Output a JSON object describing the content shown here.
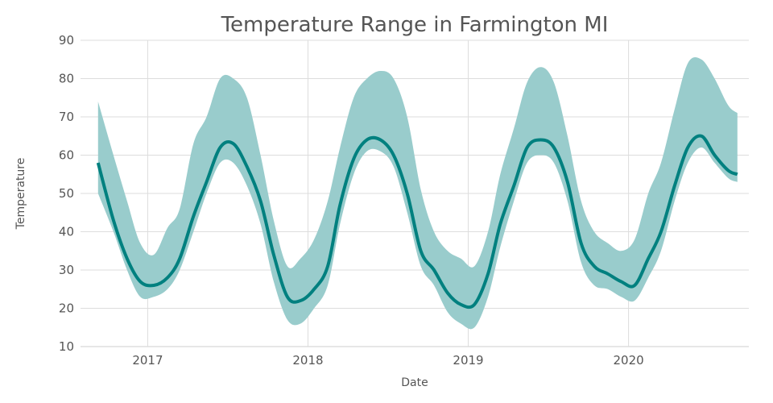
{
  "chart_data": {
    "type": "area",
    "title": "Temperature Range in Farmington MI",
    "xlabel": "Date",
    "ylabel": "Temperature",
    "x_type": "date",
    "x_range": [
      "2016-08-01",
      "2020-10-01"
    ],
    "ylim": [
      10,
      90
    ],
    "y_ticks": [
      10,
      20,
      30,
      40,
      50,
      60,
      70,
      80,
      90
    ],
    "x_ticks": [
      {
        "date": "2017-01-01",
        "label": "2017"
      },
      {
        "date": "2018-01-01",
        "label": "2018"
      },
      {
        "date": "2019-01-01",
        "label": "2019"
      },
      {
        "date": "2020-01-01",
        "label": "2020"
      }
    ],
    "grid": true,
    "colors": {
      "line": "#00807f",
      "band": "#99cccc"
    },
    "x": [
      "2016-09-10",
      "2016-10-15",
      "2016-11-15",
      "2016-12-15",
      "2017-01-15",
      "2017-02-15",
      "2017-03-15",
      "2017-04-15",
      "2017-05-15",
      "2017-06-15",
      "2017-07-15",
      "2017-08-15",
      "2017-09-15",
      "2017-10-15",
      "2017-11-15",
      "2017-12-15",
      "2018-01-15",
      "2018-02-15",
      "2018-03-15",
      "2018-04-15",
      "2018-05-15",
      "2018-06-15",
      "2018-07-15",
      "2018-08-15",
      "2018-09-15",
      "2018-10-15",
      "2018-11-15",
      "2018-12-15",
      "2019-01-15",
      "2019-02-15",
      "2019-03-15",
      "2019-04-15",
      "2019-05-15",
      "2019-06-15",
      "2019-07-15",
      "2019-08-15",
      "2019-09-15",
      "2019-10-15",
      "2019-11-15",
      "2019-12-15",
      "2020-01-15",
      "2020-02-15",
      "2020-03-15",
      "2020-04-15",
      "2020-05-15",
      "2020-06-15",
      "2020-07-15",
      "2020-08-15",
      "2020-09-05"
    ],
    "series": [
      {
        "role": "high",
        "values": [
          74,
          60,
          48,
          37,
          34,
          41,
          46,
          63,
          70,
          80,
          80,
          75,
          60,
          43,
          31,
          33,
          38,
          48,
          62,
          75,
          80,
          82,
          80,
          70,
          51,
          40,
          35,
          33,
          31,
          40,
          55,
          67,
          79,
          83,
          79,
          65,
          48,
          40,
          37,
          35,
          38,
          50,
          58,
          72,
          84,
          85,
          80,
          73,
          71
        ]
      },
      {
        "role": "mean",
        "values": [
          58,
          43,
          33,
          27,
          26,
          28,
          33,
          44,
          53,
          62,
          63,
          57,
          48,
          34,
          23,
          22,
          25,
          31,
          47,
          59,
          64,
          64,
          60,
          50,
          35,
          30,
          24,
          21,
          21,
          29,
          42,
          52,
          62,
          64,
          62,
          53,
          37,
          31,
          29,
          27,
          26,
          33,
          40,
          52,
          62,
          65,
          60,
          56,
          55
        ]
      },
      {
        "role": "low",
        "values": [
          50,
          40,
          30,
          23,
          23,
          25,
          30,
          40,
          50,
          58,
          58,
          52,
          42,
          27,
          17,
          16,
          20,
          26,
          42,
          55,
          61,
          61,
          57,
          45,
          31,
          26,
          19,
          16,
          15,
          23,
          36,
          48,
          58,
          60,
          58,
          48,
          32,
          26,
          25,
          23,
          22,
          28,
          35,
          48,
          58,
          62,
          58,
          54,
          53
        ]
      }
    ]
  }
}
